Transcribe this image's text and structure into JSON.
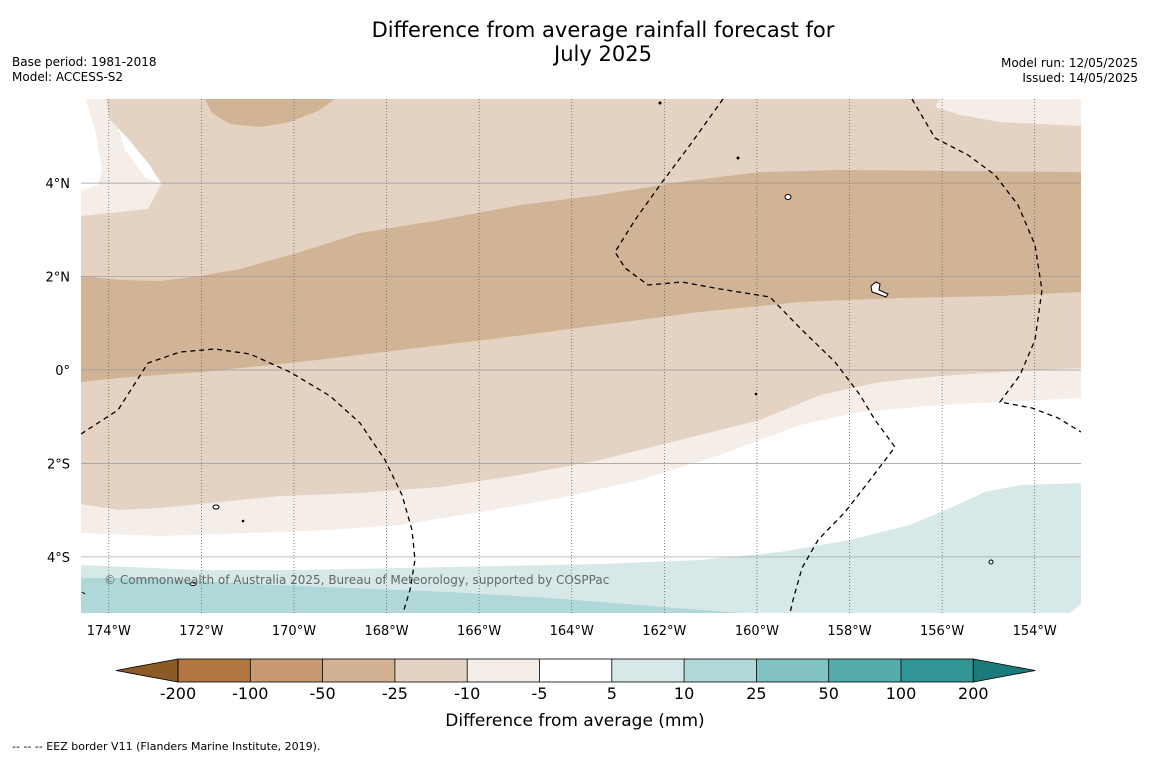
{
  "title_line1": "Difference from average rainfall forecast for",
  "title_line2": "July 2025",
  "base_period": "Base period: 1981-2018",
  "model": "Model: ACCESS-S2",
  "model_run": "Model run: 12/05/2025",
  "issued": "Issued: 14/05/2025",
  "copyright": "© Commonwealth of Australia 2025, Bureau of Meteorology, supported by COSPPac",
  "footer_note": "--  --  -- EEZ border V11 (Flanders Marine Institute, 2019).",
  "map": {
    "lon_range": [
      -174.6,
      -153.0
    ],
    "lat_range": [
      -5.2,
      5.8
    ],
    "lat_ticks": [
      {
        "value": 4,
        "label": "4°N"
      },
      {
        "value": 2,
        "label": "2°N"
      },
      {
        "value": 0,
        "label": "0°"
      },
      {
        "value": -2,
        "label": "2°S"
      },
      {
        "value": -4,
        "label": "4°S"
      }
    ],
    "lon_ticks": [
      {
        "value": -174,
        "label": "174°W"
      },
      {
        "value": -172,
        "label": "172°W"
      },
      {
        "value": -170,
        "label": "170°W"
      },
      {
        "value": -168,
        "label": "168°W"
      },
      {
        "value": -166,
        "label": "166°W"
      },
      {
        "value": -164,
        "label": "164°W"
      },
      {
        "value": -162,
        "label": "162°W"
      },
      {
        "value": -160,
        "label": "160°W"
      },
      {
        "value": -158,
        "label": "158°W"
      },
      {
        "value": -156,
        "label": "156°W"
      },
      {
        "value": -154,
        "label": "154°W"
      }
    ]
  },
  "colorbar": {
    "title": "Difference from average (mm)",
    "labels": [
      "-200",
      "-100",
      "-50",
      "-25",
      "-10",
      "-5",
      "5",
      "10",
      "25",
      "50",
      "100",
      "200"
    ],
    "colors": [
      "#8c5a25",
      "#b07840",
      "#c79a72",
      "#d3b293",
      "#e4d2c2",
      "#f5ede8",
      "#ffffff",
      "#d6e9e8",
      "#b0d8d8",
      "#82c2c2",
      "#58abab",
      "#339696",
      "#1d7a7a"
    ]
  },
  "legend_colors": {
    "dark_tan": "#d1b395",
    "light_tan": "#e4d2c2",
    "cream": "#f5ede8",
    "light_teal": "#d6e9e8",
    "teal": "#b0d8d8"
  }
}
